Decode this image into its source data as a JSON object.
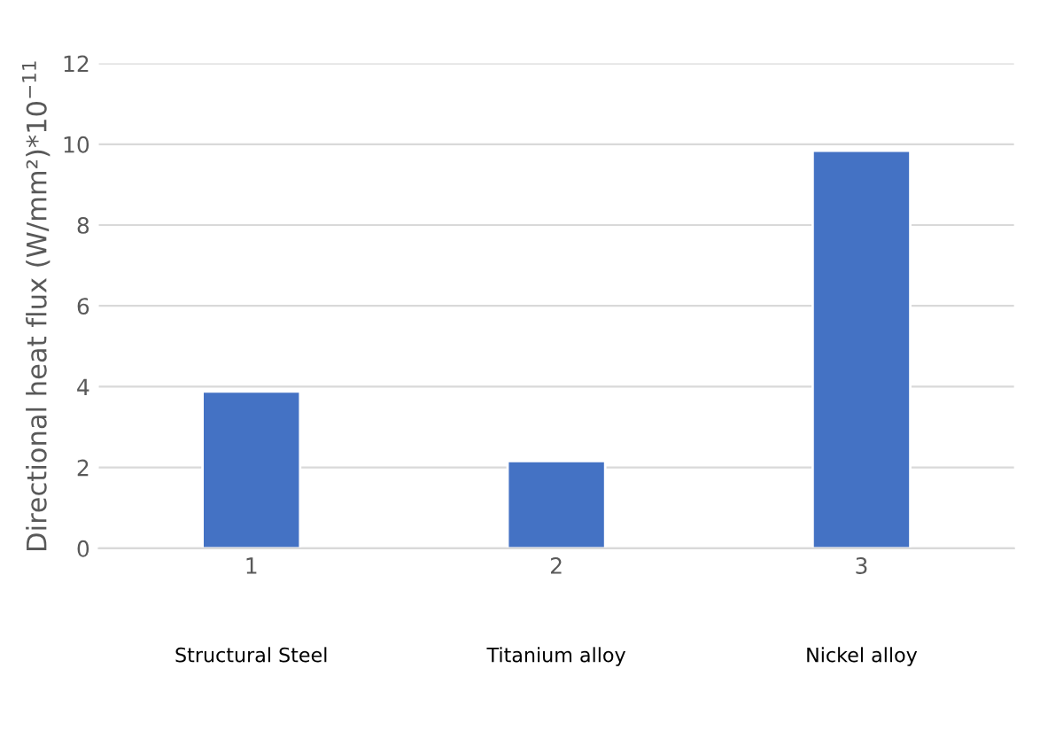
{
  "chart_data": {
    "type": "bar",
    "ylabel": "Directional heat flux (W/mm²)*10$^{−11}$",
    "categories": [
      "1",
      "2",
      "3"
    ],
    "values": [
      3.88,
      2.16,
      9.84
    ],
    "color": "#4472c4",
    "ylim": [
      0,
      12
    ],
    "yticks": [
      0,
      2,
      4,
      6,
      8,
      10,
      12
    ],
    "grid": "y",
    "annotations": [
      "Structural Steel",
      "Titanium alloy",
      "Nickel alloy"
    ]
  }
}
